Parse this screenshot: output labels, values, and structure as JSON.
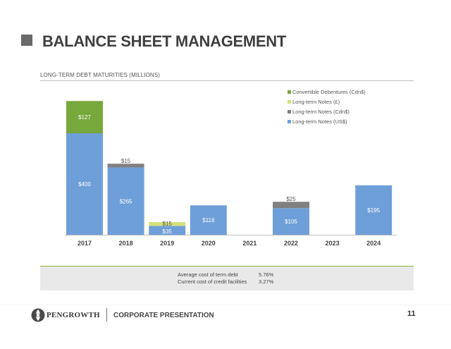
{
  "header": {
    "title": "BALANCE SHEET MANAGEMENT"
  },
  "chart_data": {
    "type": "bar",
    "stacked": true,
    "title": "LONG-TERM DEBT MATURITIES (MILLIONS)",
    "categories": [
      "2017",
      "2018",
      "2019",
      "2020",
      "2021",
      "2022",
      "2023",
      "2024"
    ],
    "series": [
      {
        "name": "Long-term Notes (US$)",
        "color": "#6f9fd8",
        "values": [
          400,
          265,
          35,
          116,
          0,
          105,
          0,
          195
        ],
        "labels": [
          "$400",
          "$265",
          "$35",
          "$116",
          "",
          "$105",
          "",
          "$195"
        ]
      },
      {
        "name": "Long-term Notes (Cdn$)",
        "color": "#808080",
        "values": [
          0,
          15,
          0,
          0,
          0,
          25,
          0,
          0
        ],
        "labels": [
          "",
          "$15",
          "",
          "",
          "",
          "$25",
          "",
          ""
        ]
      },
      {
        "name": "Long-term Notes (£)",
        "color": "#d5e07a",
        "values": [
          0,
          0,
          15,
          0,
          0,
          0,
          0,
          0
        ],
        "labels": [
          "",
          "",
          "$15",
          "",
          "",
          "",
          "",
          ""
        ]
      },
      {
        "name": "Convertible Debentures (Cdn$)",
        "color": "#76a83c",
        "values": [
          127,
          0,
          0,
          0,
          0,
          0,
          0,
          0
        ],
        "labels": [
          "$127",
          "",
          "",
          "",
          "",
          "",
          "",
          ""
        ]
      }
    ],
    "legend_order": [
      3,
      2,
      1,
      0
    ],
    "legend_position": "top-right",
    "ylim": [
      0,
      550
    ],
    "grid": false
  },
  "summary": {
    "avg_cost_label": "Average cost of term debt",
    "avg_cost_value": "5.76%",
    "credit_cost_label": "Current cost of credit facilities",
    "credit_cost_value": "3.27%"
  },
  "footer": {
    "logo_text": "PENGROWTH",
    "label": "CORPORATE PRESENTATION",
    "page_number": "11"
  }
}
